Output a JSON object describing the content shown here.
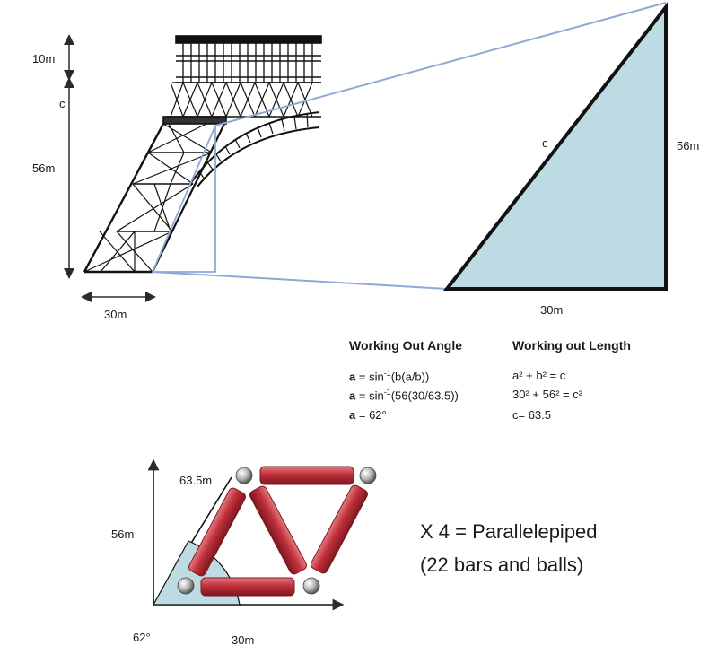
{
  "tower": {
    "top_height_label": "10m",
    "hyp_label": "c",
    "height_label": "56m",
    "base_label": "30m"
  },
  "triangle": {
    "hyp_label": "c",
    "height_label": "56m",
    "base_label": "30m",
    "fill_color": "#bcdbe2",
    "line_color": "#8fa9d6"
  },
  "working_angle": {
    "title": "Working Out Angle",
    "var": "a",
    "line1_rhs": "= sin",
    "line1_arg": "(b(a/b))",
    "line2_rhs": "= sin",
    "line2_arg": "(56(30/63.5))",
    "line3_rhs": "= 62°",
    "exponent": "-1"
  },
  "working_length": {
    "title": "Working out Length",
    "line1": "a² + b² = c",
    "line2": "30² + 56² = c²",
    "line3": "c= 63.5"
  },
  "model": {
    "hyp_label": "63.5m",
    "height_label": "56m",
    "angle_label": "62°",
    "base_label": "30m",
    "bar_color": "#c0303a"
  },
  "note": {
    "line1": "X 4 = Parallelepiped",
    "line2": "(22 bars and balls)"
  }
}
